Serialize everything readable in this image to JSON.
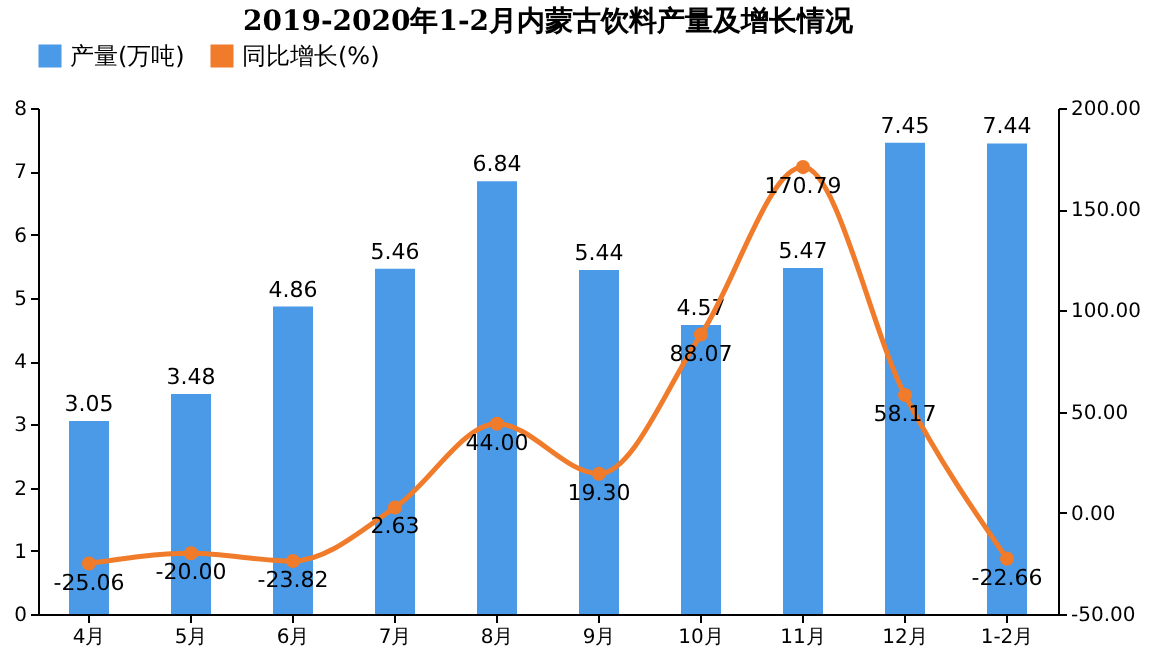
{
  "chart_data": {
    "type": "bar",
    "title": "2019-2020年1-2月内蒙古饮料产量及增长情况",
    "categories": [
      "4月",
      "5月",
      "6月",
      "7月",
      "8月",
      "9月",
      "10月",
      "11月",
      "12月",
      "1-2月"
    ],
    "series": [
      {
        "name": "产量(万吨)",
        "color": "#4a9ae8",
        "values": [
          3.05,
          3.48,
          4.86,
          5.46,
          6.84,
          5.44,
          4.57,
          5.47,
          7.45,
          7.44
        ],
        "value_labels": [
          "3.05",
          "3.48",
          "4.86",
          "5.46",
          "6.84",
          "5.44",
          "4.57",
          "5.47",
          "7.45",
          "7.44"
        ]
      },
      {
        "name": "同比增长(%)",
        "type": "line",
        "axis": "y2",
        "color": "#f07b2a",
        "marker": "circle",
        "values": [
          -25.06,
          -20.0,
          -23.82,
          2.63,
          44.0,
          19.3,
          88.07,
          170.79,
          58.17,
          -22.66
        ],
        "value_labels": [
          "-25.06",
          "-20.00",
          "-23.82",
          "2.63",
          "44.00",
          "19.30",
          "88.07",
          "170.79",
          "58.17",
          "-22.66"
        ]
      }
    ],
    "ylim": [
      0,
      8
    ],
    "yticks": [
      0,
      1,
      2,
      3,
      4,
      5,
      6,
      7,
      8
    ],
    "y2lim": [
      -50,
      200
    ],
    "y2ticks": [
      {
        "value": -50,
        "label": "-50.00"
      },
      {
        "value": 0,
        "label": "0.00"
      },
      {
        "value": 50,
        "label": "50.00"
      },
      {
        "value": 100,
        "label": "100.00"
      },
      {
        "value": 150,
        "label": "150.00"
      },
      {
        "value": 200,
        "label": "200.00"
      }
    ],
    "legend": "top",
    "grid": false
  }
}
